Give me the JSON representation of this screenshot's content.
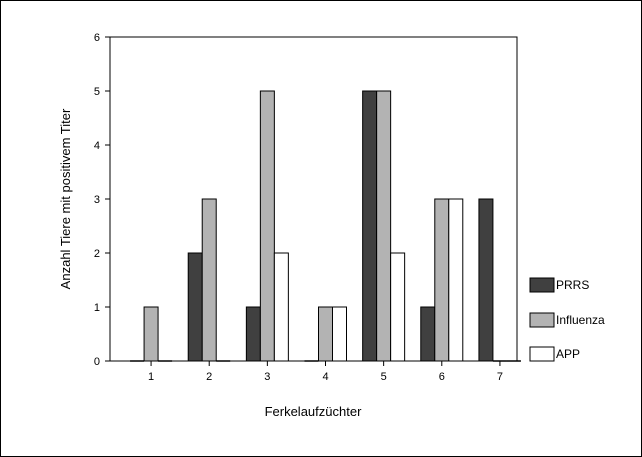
{
  "chart_data": {
    "type": "bar",
    "title": "",
    "xlabel": "Ferkelaufzüchter",
    "ylabel": "Anzahl Tiere mit positivem Titer",
    "categories": [
      "1",
      "2",
      "3",
      "4",
      "5",
      "6",
      "7"
    ],
    "ylim": [
      0,
      6
    ],
    "yticks": [
      0,
      1,
      2,
      3,
      4,
      5,
      6
    ],
    "grid": false,
    "legend_position": "right",
    "series": [
      {
        "name": "PRRS",
        "color": "#404040",
        "values": [
          0,
          2,
          1,
          0,
          5,
          1,
          3
        ]
      },
      {
        "name": "Influenza",
        "color": "#b3b3b3",
        "values": [
          1,
          3,
          5,
          1,
          5,
          3,
          0
        ]
      },
      {
        "name": "APP",
        "color": "#ffffff",
        "values": [
          0,
          0,
          2,
          1,
          2,
          3,
          0
        ]
      }
    ]
  }
}
